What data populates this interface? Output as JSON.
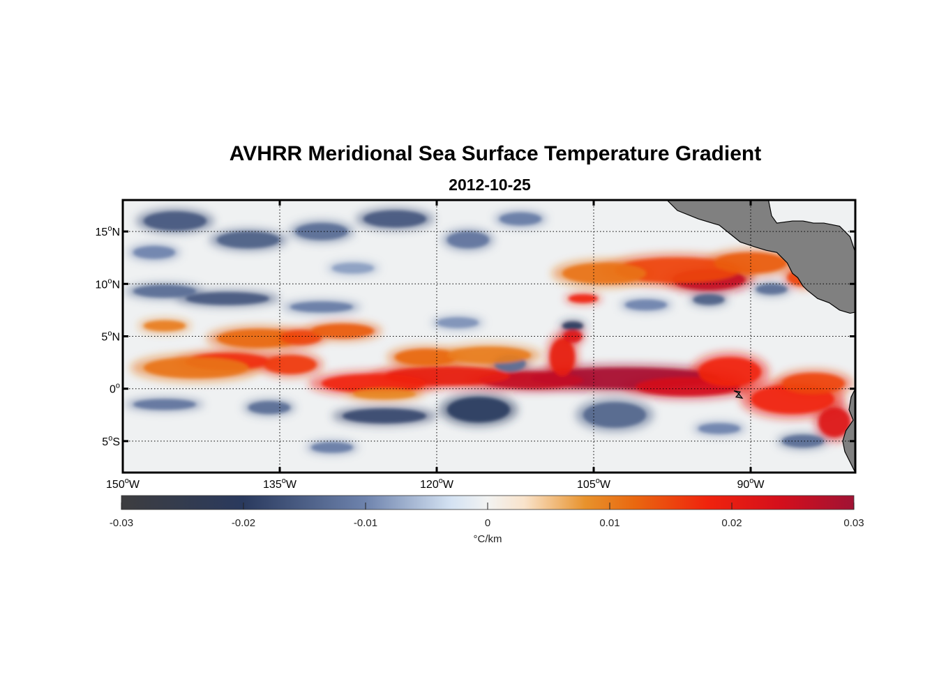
{
  "figure": {
    "title": "AVHRR Meridional Sea Surface Temperature Gradient",
    "subtitle": "2012-10-25"
  },
  "map": {
    "lon_range": [
      -150,
      -80
    ],
    "lat_range": [
      -8,
      18
    ],
    "lat_ticks": [
      {
        "value": 15,
        "num": "15",
        "hemi": "N"
      },
      {
        "value": 10,
        "num": "10",
        "hemi": "N"
      },
      {
        "value": 5,
        "num": "5",
        "hemi": "N"
      },
      {
        "value": 0,
        "num": "0",
        "hemi": ""
      },
      {
        "value": -5,
        "num": "5",
        "hemi": "S"
      }
    ],
    "lon_ticks": [
      {
        "value": -150,
        "num": "150",
        "hemi": "W"
      },
      {
        "value": -135,
        "num": "135",
        "hemi": "W"
      },
      {
        "value": -120,
        "num": "120",
        "hemi": "W"
      },
      {
        "value": -105,
        "num": "105",
        "hemi": "W"
      },
      {
        "value": -90,
        "num": "90",
        "hemi": "W"
      }
    ],
    "land_color": "#808080"
  },
  "colorbar": {
    "ticks": [
      "-0.03",
      "-0.02",
      "-0.01",
      "0",
      "0.01",
      "0.02",
      "0.03"
    ],
    "range": [
      -0.03,
      0.03
    ],
    "unit_label": "°C/km",
    "stops": [
      {
        "v": -0.03,
        "color": "#3d3d3f"
      },
      {
        "v": -0.02,
        "color": "#2a3a5e"
      },
      {
        "v": -0.01,
        "color": "#6e83ad"
      },
      {
        "v": -0.003,
        "color": "#d4e2f2"
      },
      {
        "v": 0.0,
        "color": "#f2f3f2"
      },
      {
        "v": 0.003,
        "color": "#f9e3cb"
      },
      {
        "v": 0.008,
        "color": "#e8922c"
      },
      {
        "v": 0.012,
        "color": "#e96810"
      },
      {
        "v": 0.018,
        "color": "#f0230d"
      },
      {
        "v": 0.024,
        "color": "#d40f1c"
      },
      {
        "v": 0.03,
        "color": "#a01334"
      }
    ]
  },
  "field_features": {
    "warm": [
      {
        "lon": -102,
        "lat": 1.0,
        "value": 0.029,
        "rlon": 9,
        "rlat": 1.0
      },
      {
        "lon": -111,
        "lat": 0.8,
        "value": 0.026,
        "rlon": 5,
        "rlat": 0.8
      },
      {
        "lon": -96,
        "lat": 0.2,
        "value": 0.024,
        "rlon": 5,
        "rlat": 0.9
      },
      {
        "lon": -119,
        "lat": 1.2,
        "value": 0.02,
        "rlon": 6,
        "rlat": 0.9
      },
      {
        "lon": -126,
        "lat": 0.5,
        "value": 0.018,
        "rlon": 5,
        "rlat": 0.9
      },
      {
        "lon": -92,
        "lat": 1.6,
        "value": 0.018,
        "rlon": 3,
        "rlat": 1.4
      },
      {
        "lon": -86,
        "lat": -1.0,
        "value": 0.018,
        "rlon": 4,
        "rlat": 1.4
      },
      {
        "lon": -82,
        "lat": -3.2,
        "value": 0.022,
        "rlon": 1.5,
        "rlat": 1.4
      },
      {
        "lon": -84,
        "lat": 0.5,
        "value": 0.015,
        "rlon": 3,
        "rlat": 1.0
      },
      {
        "lon": -108,
        "lat": 3.0,
        "value": 0.02,
        "rlon": 1.2,
        "rlat": 1.8
      },
      {
        "lon": -107,
        "lat": 5.0,
        "value": 0.022,
        "rlon": 0.9,
        "rlat": 0.6
      },
      {
        "lon": -94,
        "lat": 10.4,
        "value": 0.026,
        "rlon": 3.5,
        "rlat": 1.0
      },
      {
        "lon": -97,
        "lat": 11.3,
        "value": 0.015,
        "rlon": 6,
        "rlat": 1.2
      },
      {
        "lon": -90,
        "lat": 12.0,
        "value": 0.013,
        "rlon": 3.5,
        "rlat": 1.0
      },
      {
        "lon": -104,
        "lat": 11.0,
        "value": 0.011,
        "rlon": 4,
        "rlat": 1.0
      },
      {
        "lon": -106,
        "lat": 8.6,
        "value": 0.018,
        "rlon": 1.4,
        "rlat": 0.4
      },
      {
        "lon": -85,
        "lat": 10.6,
        "value": 0.015,
        "rlon": 1.5,
        "rlat": 0.8
      },
      {
        "lon": -140,
        "lat": 2.6,
        "value": 0.017,
        "rlon": 4,
        "rlat": 0.8
      },
      {
        "lon": -143,
        "lat": 2.0,
        "value": 0.011,
        "rlon": 5,
        "rlat": 1.0
      },
      {
        "lon": -137,
        "lat": 4.8,
        "value": 0.012,
        "rlon": 4,
        "rlat": 0.9
      },
      {
        "lon": -133,
        "lat": 4.9,
        "value": 0.015,
        "rlon": 2,
        "rlat": 0.7
      },
      {
        "lon": -134,
        "lat": 2.3,
        "value": 0.016,
        "rlon": 2.5,
        "rlat": 0.9
      },
      {
        "lon": -129,
        "lat": 5.5,
        "value": 0.013,
        "rlon": 3,
        "rlat": 0.7
      },
      {
        "lon": -146,
        "lat": 6.0,
        "value": 0.01,
        "rlon": 2,
        "rlat": 0.5
      },
      {
        "lon": -121,
        "lat": 3.0,
        "value": 0.012,
        "rlon": 3,
        "rlat": 0.8
      },
      {
        "lon": -115,
        "lat": 3.2,
        "value": 0.01,
        "rlon": 4,
        "rlat": 0.8
      },
      {
        "lon": -125,
        "lat": -0.5,
        "value": 0.009,
        "rlon": 3,
        "rlat": 0.5
      }
    ],
    "cold": [
      {
        "lon": -116,
        "lat": -2.0,
        "value": -0.02,
        "rlon": 3,
        "rlat": 1.2
      },
      {
        "lon": -125,
        "lat": -2.6,
        "value": -0.018,
        "rlon": 4,
        "rlat": 0.7
      },
      {
        "lon": -103,
        "lat": -2.5,
        "value": -0.014,
        "rlon": 3,
        "rlat": 1.2
      },
      {
        "lon": -113,
        "lat": 2.4,
        "value": -0.013,
        "rlon": 1.5,
        "rlat": 0.8
      },
      {
        "lon": -107,
        "lat": 6.0,
        "value": -0.02,
        "rlon": 1.0,
        "rlat": 0.4
      },
      {
        "lon": -94,
        "lat": 8.5,
        "value": -0.015,
        "rlon": 1.5,
        "rlat": 0.5
      },
      {
        "lon": -100,
        "lat": 8.0,
        "value": -0.01,
        "rlon": 2,
        "rlat": 0.5
      },
      {
        "lon": -88,
        "lat": 9.5,
        "value": -0.013,
        "rlon": 1.5,
        "rlat": 0.5
      },
      {
        "lon": -140,
        "lat": 8.6,
        "value": -0.016,
        "rlon": 4,
        "rlat": 0.6
      },
      {
        "lon": -146,
        "lat": 9.3,
        "value": -0.013,
        "rlon": 3,
        "rlat": 0.6
      },
      {
        "lon": -131,
        "lat": 7.8,
        "value": -0.011,
        "rlon": 3,
        "rlat": 0.5
      },
      {
        "lon": -145,
        "lat": 16.0,
        "value": -0.016,
        "rlon": 3,
        "rlat": 0.9
      },
      {
        "lon": -138,
        "lat": 14.2,
        "value": -0.015,
        "rlon": 3,
        "rlat": 0.8
      },
      {
        "lon": -131,
        "lat": 15.0,
        "value": -0.013,
        "rlon": 2.5,
        "rlat": 0.8
      },
      {
        "lon": -124,
        "lat": 16.2,
        "value": -0.016,
        "rlon": 3,
        "rlat": 0.8
      },
      {
        "lon": -117,
        "lat": 14.2,
        "value": -0.012,
        "rlon": 2,
        "rlat": 0.8
      },
      {
        "lon": -112,
        "lat": 16.2,
        "value": -0.011,
        "rlon": 2,
        "rlat": 0.6
      },
      {
        "lon": -136,
        "lat": -1.8,
        "value": -0.013,
        "rlon": 2,
        "rlat": 0.6
      },
      {
        "lon": -146,
        "lat": -1.5,
        "value": -0.012,
        "rlon": 3,
        "rlat": 0.5
      },
      {
        "lon": -85,
        "lat": -5.0,
        "value": -0.013,
        "rlon": 2,
        "rlat": 0.6
      },
      {
        "lon": -93,
        "lat": -3.8,
        "value": -0.01,
        "rlon": 2,
        "rlat": 0.5
      },
      {
        "lon": -130,
        "lat": -5.6,
        "value": -0.011,
        "rlon": 2,
        "rlat": 0.5
      },
      {
        "lon": -118,
        "lat": 6.3,
        "value": -0.009,
        "rlon": 2,
        "rlat": 0.5
      },
      {
        "lon": -147,
        "lat": 13.0,
        "value": -0.01,
        "rlon": 2,
        "rlat": 0.6
      },
      {
        "lon": -128,
        "lat": 11.5,
        "value": -0.008,
        "rlon": 2,
        "rlat": 0.5
      }
    ]
  },
  "coastlines": {
    "central_america": [
      [
        -98.0,
        18.0
      ],
      [
        -97.0,
        17.0
      ],
      [
        -95.0,
        16.2
      ],
      [
        -93.0,
        15.6
      ],
      [
        -92.0,
        14.8
      ],
      [
        -91.0,
        14.0
      ],
      [
        -89.5,
        13.5
      ],
      [
        -88.5,
        13.2
      ],
      [
        -87.5,
        13.0
      ],
      [
        -86.5,
        12.0
      ],
      [
        -86.0,
        11.0
      ],
      [
        -85.5,
        10.6
      ],
      [
        -85.0,
        9.8
      ],
      [
        -84.6,
        9.4
      ],
      [
        -83.6,
        8.6
      ],
      [
        -82.5,
        8.2
      ],
      [
        -81.5,
        7.5
      ],
      [
        -80.5,
        7.2
      ],
      [
        -80.0,
        7.3
      ],
      [
        -80.0,
        13.0
      ],
      [
        -80.5,
        14.5
      ],
      [
        -81.5,
        15.5
      ],
      [
        -83.0,
        15.8
      ],
      [
        -84.0,
        15.8
      ],
      [
        -85.0,
        16.0
      ],
      [
        -86.0,
        16.0
      ],
      [
        -87.5,
        15.8
      ],
      [
        -88.0,
        16.5
      ],
      [
        -88.3,
        18.0
      ]
    ],
    "south_america": [
      [
        -80.0,
        0.0
      ],
      [
        -80.4,
        -0.8
      ],
      [
        -80.6,
        -2.0
      ],
      [
        -80.2,
        -3.0
      ],
      [
        -80.9,
        -4.0
      ],
      [
        -81.2,
        -5.0
      ],
      [
        -81.0,
        -6.0
      ],
      [
        -80.5,
        -7.0
      ],
      [
        -80.0,
        -8.0
      ]
    ],
    "galapagos": [
      [
        -91.6,
        -0.2
      ],
      [
        -91.2,
        -0.4
      ],
      [
        -90.8,
        -0.9
      ],
      [
        -91.4,
        -0.8
      ],
      [
        -91.0,
        -0.3
      ]
    ]
  }
}
